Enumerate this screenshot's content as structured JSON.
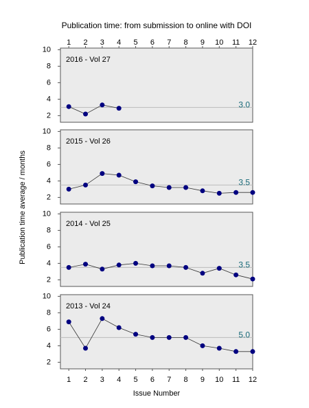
{
  "title": "Publication time: from submission to online with DOI",
  "xlabel": "Issue Number",
  "ylabel": "Publication time average / months",
  "chart_data": [
    {
      "type": "line",
      "title": "2016 - Vol 27",
      "x": [
        1,
        2,
        3,
        4
      ],
      "series": [
        {
          "color": "#000080",
          "values": [
            3.1,
            2.2,
            3.3,
            2.9
          ]
        }
      ],
      "average": {
        "value": 3,
        "label": "3.0"
      },
      "average_color": "#bbbbbb",
      "average_label_color": "#1a6b7a",
      "xlim": [
        0.5,
        12
      ],
      "ylim": [
        1.2,
        10.2
      ],
      "yticks": [
        2,
        4,
        6,
        8,
        10
      ],
      "xticks": [
        1,
        2,
        3,
        4,
        5,
        6,
        7,
        8,
        9,
        10,
        11,
        12
      ],
      "xaxis_position": "top"
    },
    {
      "type": "line",
      "title": "2015 - Vol 26",
      "x": [
        1,
        2,
        3,
        4,
        5,
        6,
        7,
        8,
        9,
        10,
        11,
        12
      ],
      "series": [
        {
          "color": "#000080",
          "values": [
            3.0,
            3.5,
            4.9,
            4.7,
            3.9,
            3.4,
            3.2,
            3.2,
            2.8,
            2.5,
            2.6,
            2.6
          ]
        }
      ],
      "average": 3.5,
      "average_color": "#bbbbbb",
      "average_label_color": "#1a6b7a",
      "xlim": [
        0.5,
        12
      ],
      "ylim": [
        1.2,
        10.2
      ],
      "yticks": [
        2,
        4,
        6,
        8,
        10
      ]
    },
    {
      "type": "line",
      "title": "2014 - Vol 25",
      "x": [
        1,
        2,
        3,
        4,
        5,
        6,
        7,
        8,
        9,
        10,
        11,
        12
      ],
      "series": [
        {
          "color": "#000080",
          "values": [
            3.5,
            3.9,
            3.3,
            3.8,
            4.0,
            3.7,
            3.7,
            3.5,
            2.8,
            3.4,
            2.6,
            2.1
          ]
        }
      ],
      "average": 3.5,
      "average_color": "#bbbbbb",
      "average_label_color": "#1a6b7a",
      "xlim": [
        0.5,
        12
      ],
      "ylim": [
        1.2,
        10.2
      ],
      "yticks": [
        2,
        4,
        6,
        8,
        10
      ]
    },
    {
      "type": "line",
      "title": "2013 - Vol 24",
      "x": [
        1,
        2,
        3,
        4,
        5,
        6,
        7,
        8,
        9,
        10,
        11,
        12
      ],
      "series": [
        {
          "color": "#000080",
          "values": [
            6.9,
            3.7,
            7.3,
            6.2,
            5.4,
            5.0,
            5.0,
            5.0,
            4.0,
            3.7,
            3.3,
            3.3
          ]
        }
      ],
      "average": {
        "value": 5,
        "label": "5.0"
      },
      "average_color": "#bbbbbb",
      "average_label_color": "#1a6b7a",
      "xlim": [
        0.5,
        12
      ],
      "ylim": [
        1.2,
        10.2
      ],
      "yticks": [
        2,
        4,
        6,
        8,
        10
      ],
      "xticks": [
        1,
        2,
        3,
        4,
        5,
        6,
        7,
        8,
        9,
        10,
        11,
        12
      ],
      "xaxis_position": "bottom"
    }
  ]
}
